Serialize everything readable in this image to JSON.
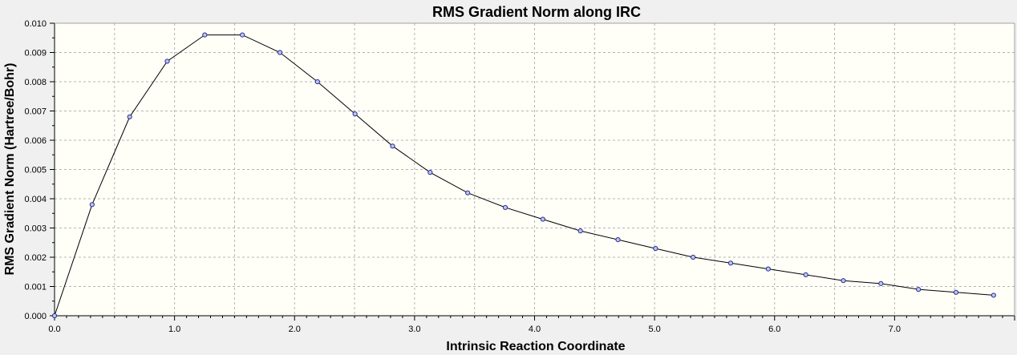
{
  "chart_data": {
    "type": "line",
    "title": "RMS Gradient Norm along IRC",
    "xlabel": "Intrinsic Reaction Coordinate",
    "ylabel": "RMS Gradient Norm (Hartree/Bohr)",
    "xlim": [
      0.0,
      8.0
    ],
    "ylim": [
      0.0,
      0.01
    ],
    "x_ticks": [
      "0.0",
      "1.0",
      "2.0",
      "3.0",
      "4.0",
      "5.0",
      "6.0",
      "7.0"
    ],
    "y_ticks": [
      "0.000",
      "0.001",
      "0.002",
      "0.003",
      "0.004",
      "0.005",
      "0.006",
      "0.007",
      "0.008",
      "0.009",
      "0.010"
    ],
    "grid": true,
    "colors": {
      "plot_background": "#fffff8",
      "line": "#000000",
      "marker_fill": "#bcc6f2",
      "marker_stroke": "#2b2f8f"
    },
    "series": [
      {
        "x": [
          0.0,
          0.313,
          0.626,
          0.939,
          1.252,
          1.565,
          1.878,
          2.191,
          2.504,
          2.817,
          3.13,
          3.443,
          3.756,
          4.069,
          4.382,
          4.695,
          5.008,
          5.321,
          5.634,
          5.947,
          6.26,
          6.573,
          6.886,
          7.199,
          7.512,
          7.825
        ],
        "y": [
          0.0,
          0.0038,
          0.0068,
          0.0087,
          0.0096,
          0.0096,
          0.009,
          0.008,
          0.0069,
          0.0058,
          0.0049,
          0.0042,
          0.0037,
          0.0033,
          0.0029,
          0.0026,
          0.0023,
          0.002,
          0.0018,
          0.0016,
          0.0014,
          0.0012,
          0.0011,
          0.0009,
          0.0008,
          0.0007
        ]
      }
    ]
  }
}
